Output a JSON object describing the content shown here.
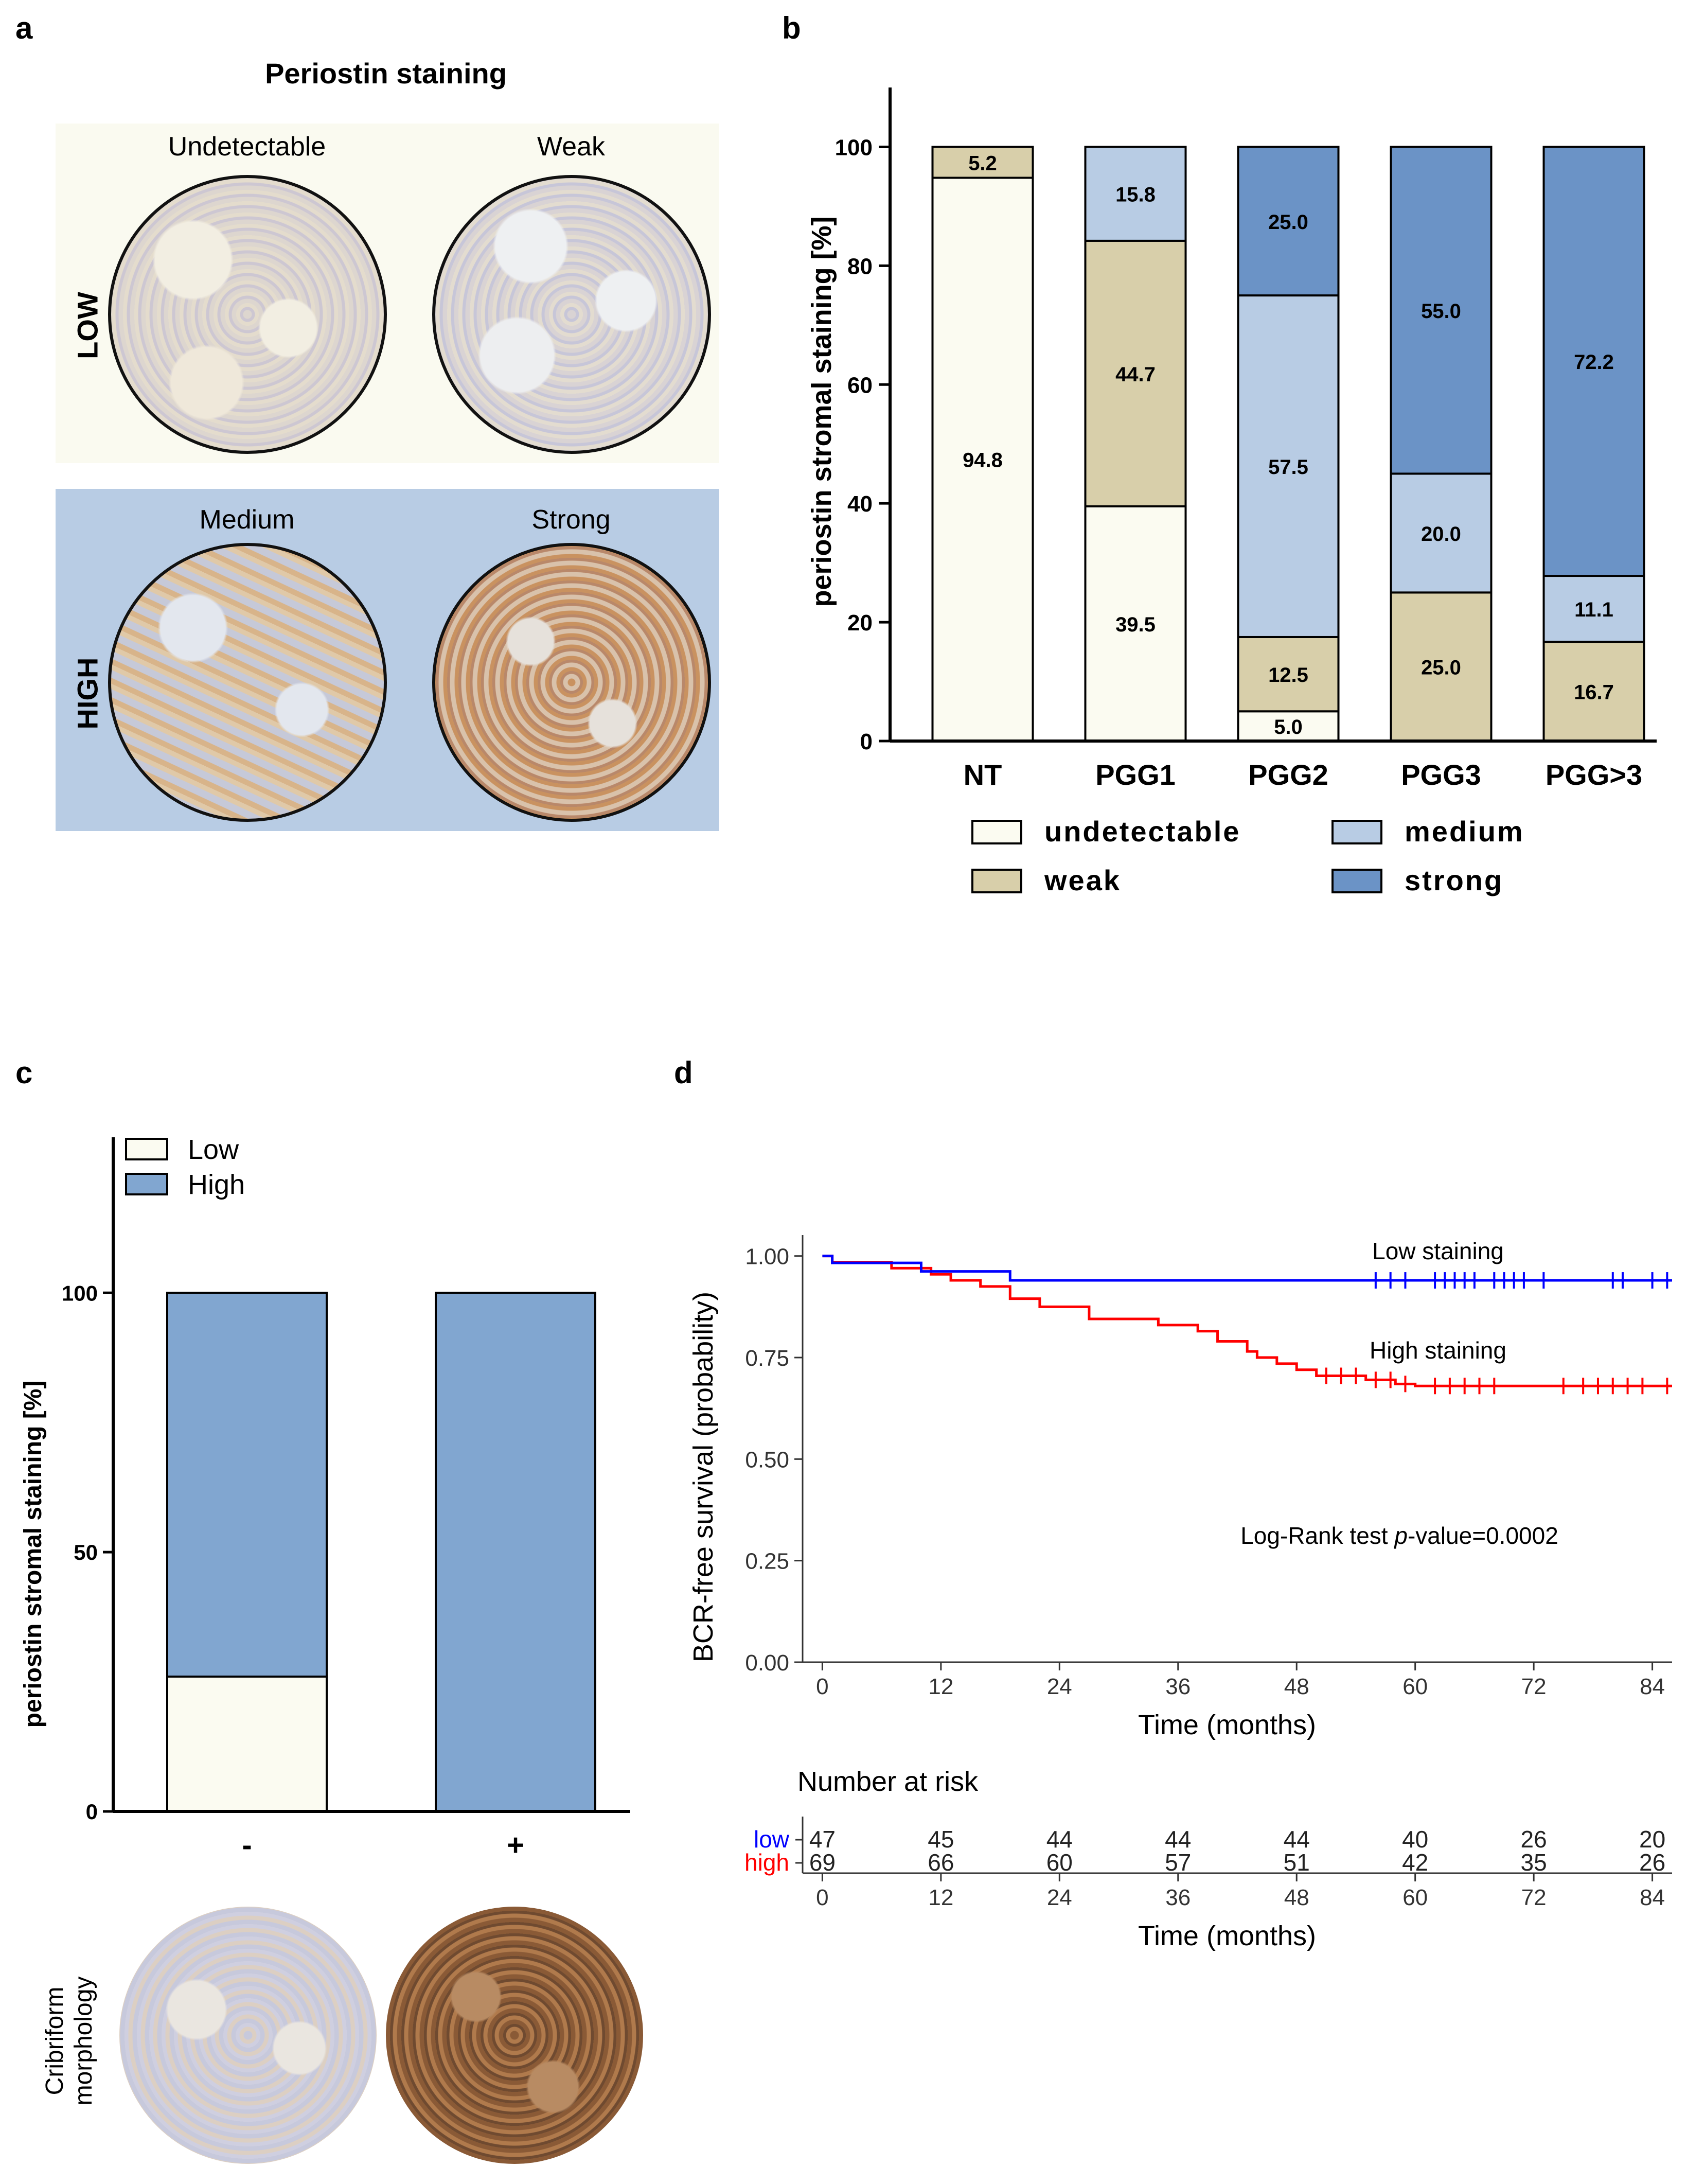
{
  "panel_letters": {
    "a": "a",
    "b": "b",
    "c": "c",
    "d": "d"
  },
  "panel_a": {
    "title": "Periostin staining",
    "groups": [
      {
        "row_label": "LOW",
        "images": [
          {
            "label": "Undetectable"
          },
          {
            "label": "Weak"
          }
        ]
      },
      {
        "row_label": "HIGH",
        "images": [
          {
            "label": "Medium"
          },
          {
            "label": "Strong"
          }
        ]
      }
    ],
    "colors": {
      "low_bg": "#fafaf0",
      "high_bg": "#b8cce4"
    }
  },
  "panel_c_images": {
    "label_line1": "Cribriform",
    "label_line2": "morphology"
  },
  "colors": {
    "undetectable": "#fbfbf1",
    "weak": "#d8cfaa",
    "medium": "#b8cce4",
    "strong": "#6b93c6",
    "low": "#fbfbf1",
    "high": "#81a6d0",
    "km_low": "#0000ff",
    "km_high": "#ff0000"
  },
  "chart_data": [
    {
      "id": "b",
      "type": "bar",
      "stacked": true,
      "ylabel": "periostin stromal staining  [%]",
      "ylim": [
        0,
        100
      ],
      "yticks": [
        "0",
        "20",
        "40",
        "60",
        "80",
        "100"
      ],
      "categories": [
        "NT",
        "PGG1",
        "PGG2",
        "PGG3",
        "PGG>3"
      ],
      "series": [
        {
          "name": "undetectable",
          "values": [
            94.8,
            39.5,
            5.0,
            0,
            0
          ],
          "labels": [
            "94.8",
            "39.5",
            "5.0",
            "",
            ""
          ]
        },
        {
          "name": "weak",
          "values": [
            5.2,
            44.7,
            12.5,
            25.0,
            16.7
          ],
          "labels": [
            "5.2",
            "44.7",
            "12.5",
            "25.0",
            "16.7"
          ]
        },
        {
          "name": "medium",
          "values": [
            0,
            15.8,
            57.5,
            20.0,
            11.1
          ],
          "labels": [
            "",
            "15.8",
            "57.5",
            "20.0",
            "11.1"
          ]
        },
        {
          "name": "strong",
          "values": [
            0,
            0,
            25.0,
            55.0,
            72.2
          ],
          "labels": [
            "",
            "",
            "25.0",
            "55.0",
            "72.2"
          ]
        }
      ],
      "legend": [
        "undetectable",
        "weak",
        "medium",
        "strong"
      ],
      "legend_position": "bottom"
    },
    {
      "id": "c",
      "type": "bar",
      "stacked": true,
      "ylabel": "periostin stromal staining [%]",
      "ylim": [
        0,
        130
      ],
      "yticks": [
        "0",
        "50",
        "100"
      ],
      "categories": [
        "-",
        "+"
      ],
      "series": [
        {
          "name": "Low",
          "values": [
            26,
            0
          ]
        },
        {
          "name": "High",
          "values": [
            74,
            100
          ]
        }
      ],
      "legend": [
        "Low",
        "High"
      ],
      "legend_position": "top-left"
    },
    {
      "id": "d",
      "type": "line",
      "step": true,
      "xlabel": "Time (months)",
      "ylabel": "BCR-free survival (probability)",
      "xlim": [
        -2,
        86
      ],
      "ylim": [
        0,
        1.02
      ],
      "xticks": [
        "0",
        "12",
        "24",
        "36",
        "48",
        "60",
        "72",
        "84"
      ],
      "yticks": [
        "0.00",
        "0.25",
        "0.50",
        "0.75",
        "1.00"
      ],
      "annotation": {
        "prefix": "Log-Rank test ",
        "italic": "p",
        "suffix": "-value=0.0002"
      },
      "series": [
        {
          "name": "low",
          "curve_label": "Low staining",
          "x": [
            0,
            1,
            10,
            19,
            86
          ],
          "y": [
            1.0,
            0.983,
            0.962,
            0.94,
            0.94
          ],
          "censor_x": [
            56,
            57.5,
            59,
            62,
            63,
            64,
            65,
            66,
            68,
            69,
            70,
            71,
            73,
            80,
            81,
            84,
            85.5
          ],
          "censor_y": 0.94
        },
        {
          "name": "high",
          "curve_label": "High staining",
          "x": [
            0,
            1,
            7,
            11,
            13,
            16,
            19,
            22,
            27,
            34,
            38,
            40,
            43,
            44,
            46,
            48,
            50,
            55,
            58,
            60,
            86
          ],
          "y": [
            1.0,
            0.985,
            0.97,
            0.955,
            0.94,
            0.925,
            0.895,
            0.875,
            0.845,
            0.83,
            0.815,
            0.79,
            0.765,
            0.75,
            0.735,
            0.72,
            0.705,
            0.695,
            0.685,
            0.68,
            0.68
          ],
          "censor_x": [
            51,
            52.5,
            54,
            56,
            57.5,
            59,
            62,
            63.5,
            65,
            66.5,
            68,
            75,
            77,
            78.5,
            80,
            81.5,
            83,
            85.5
          ],
          "censor_y_list": [
            0.705,
            0.705,
            0.705,
            0.695,
            0.695,
            0.685,
            0.68,
            0.68,
            0.68,
            0.68,
            0.68,
            0.68,
            0.68,
            0.68,
            0.68,
            0.68,
            0.68,
            0.68
          ]
        }
      ],
      "risk_table": {
        "title": "Number at risk",
        "xlabel": "Time (months)",
        "rows": [
          {
            "label": "low",
            "values": [
              "47",
              "45",
              "44",
              "44",
              "44",
              "40",
              "26",
              "20"
            ]
          },
          {
            "label": "high",
            "values": [
              "69",
              "66",
              "60",
              "57",
              "51",
              "42",
              "35",
              "26"
            ]
          }
        ]
      }
    }
  ]
}
